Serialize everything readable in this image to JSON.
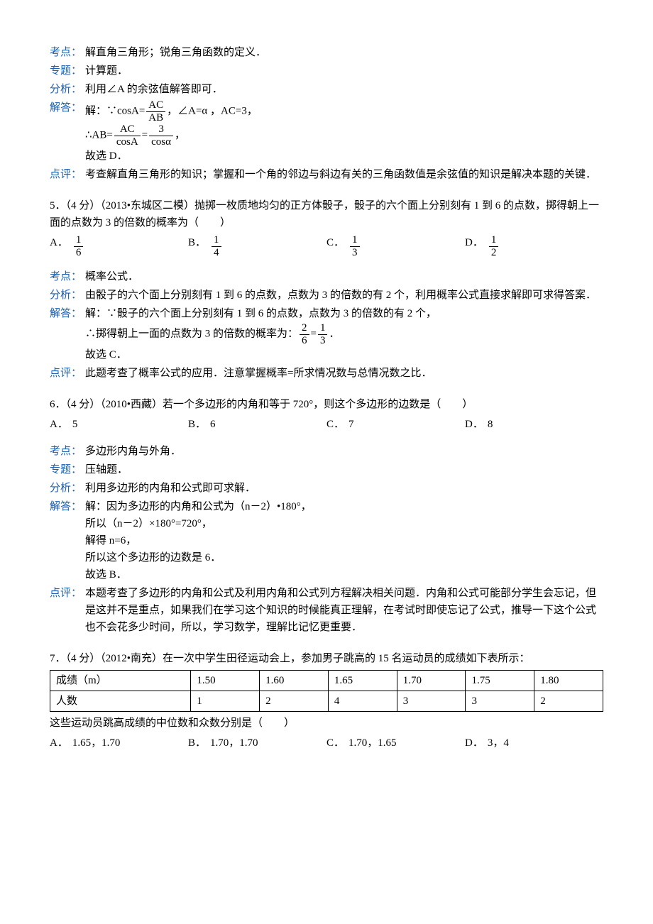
{
  "colors": {
    "label": "#1a5fb4",
    "text": "#000000",
    "bg": "#ffffff"
  },
  "labels": {
    "kaodian": "考点：",
    "zhuanti": "专题：",
    "fenxi": "分析：",
    "jieda": "解答：",
    "dianping": "点评："
  },
  "q4": {
    "kaodian": "解直角三角形；锐角三角函数的定义．",
    "zhuanti": "计算题．",
    "fenxi": "利用∠A 的余弦值解答即可．",
    "jieda_pre": "解：∵cosA=",
    "frac1_num": "AC",
    "frac1_den": "AB",
    "jieda_mid": "，∠A=α ，AC=3，",
    "line2_pre": "∴AB=",
    "frac2_num": "AC",
    "frac2_den": "cosA",
    "eq": "=",
    "frac3_num": "3",
    "frac3_den": "cosα",
    "comma": "，",
    "line3": "故选 D．",
    "dianping": "考查解直角三角形的知识；掌握和一个角的邻边与斜边有关的三角函数值是余弦值的知识是解决本题的关键．"
  },
  "q5": {
    "stem": "5．（4 分）（2013•东城区二模）抛掷一枚质地均匀的正方体骰子，骰子的六个面上分别刻有 1 到 6 的点数，掷得朝上一面的点数为 3 的倍数的概率为（　　）",
    "opts": [
      {
        "letter": "A．",
        "num": "1",
        "den": "6"
      },
      {
        "letter": "B．",
        "num": "1",
        "den": "4"
      },
      {
        "letter": "C．",
        "num": "1",
        "den": "3"
      },
      {
        "letter": "D．",
        "num": "1",
        "den": "2"
      }
    ],
    "kaodian": "概率公式．",
    "fenxi": "由骰子的六个面上分别刻有 1 到 6 的点数，点数为 3 的倍数的有 2 个，利用概率公式直接求解即可求得答案．",
    "jieda1": "解：∵骰子的六个面上分别刻有 1 到 6 的点数，点数为 3 的倍数的有 2 个，",
    "jieda2_pre": "∴掷得朝上一面的点数为 3 的倍数的概率为：",
    "f1_num": "2",
    "f1_den": "6",
    "eq": "=",
    "f2_num": "1",
    "f2_den": "3",
    "dot": "．",
    "jieda3": "故选 C．",
    "dianping": "此题考查了概率公式的应用．注意掌握概率=所求情况数与总情况数之比．"
  },
  "q6": {
    "stem": "6．（4 分）（2010•西藏）若一个多边形的内角和等于 720°，则这个多边形的边数是（　　）",
    "opts": [
      {
        "letter": "A．",
        "val": "5"
      },
      {
        "letter": "B．",
        "val": "6"
      },
      {
        "letter": "C．",
        "val": "7"
      },
      {
        "letter": "D．",
        "val": "8"
      }
    ],
    "kaodian": "多边形内角与外角．",
    "zhuanti": "压轴题．",
    "fenxi": "利用多边形的内角和公式即可求解．",
    "jieda": [
      "解：因为多边形的内角和公式为（n－2）•180°，",
      "所以（n－2）×180°=720°，",
      "解得 n=6，",
      "所以这个多边形的边数是 6．",
      "故选 B．"
    ],
    "dianping": "本题考查了多边形的内角和公式及利用内角和公式列方程解决相关问题．内角和公式可能部分学生会忘记，但是这并不是重点，如果我们在学习这个知识的时候能真正理解，在考试时即使忘记了公式，推导一下这个公式也不会花多少时间，所以，学习数学，理解比记忆更重要．"
  },
  "q7": {
    "stem": "7．（4 分）（2012•南充）在一次中学生田径运动会上，参加男子跳高的 15 名运动员的成绩如下表所示：",
    "table": {
      "headers": [
        "成绩（m）",
        "1.50",
        "1.60",
        "1.65",
        "1.70",
        "1.75",
        "1.80"
      ],
      "row2": [
        "人数",
        "1",
        "2",
        "4",
        "3",
        "3",
        "2"
      ]
    },
    "tail": "这些运动员跳高成绩的中位数和众数分别是（　　）",
    "opts": [
      {
        "letter": "A．",
        "val": "1.65，1.70"
      },
      {
        "letter": "B．",
        "val": "1.70，1.70"
      },
      {
        "letter": "C．",
        "val": "1.70，1.65"
      },
      {
        "letter": "D．",
        "val": "3，4"
      }
    ]
  }
}
